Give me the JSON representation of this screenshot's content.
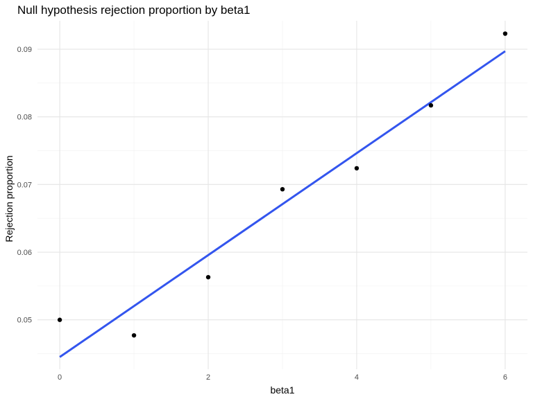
{
  "chart_data": {
    "type": "scatter",
    "title": "Null hypothesis rejection proportion by beta1",
    "xlabel": "beta1",
    "ylabel": "Rejection proportion",
    "xlim": [
      -0.3,
      6.3
    ],
    "ylim": [
      0.0427,
      0.0942
    ],
    "x_ticks": [
      0,
      2,
      4,
      6
    ],
    "x_tick_labels": [
      "0",
      "2",
      "4",
      "6"
    ],
    "y_ticks": [
      0.05,
      0.06,
      0.07,
      0.08,
      0.09
    ],
    "y_tick_labels": [
      "0.05",
      "0.06",
      "0.07",
      "0.08",
      "0.09"
    ],
    "grid": true,
    "points": {
      "x": [
        0,
        1,
        2,
        3,
        4,
        5,
        6
      ],
      "y": [
        0.05,
        0.0477,
        0.0563,
        0.0693,
        0.0724,
        0.0817,
        0.0923
      ]
    },
    "fit_line": {
      "x": [
        0,
        6
      ],
      "y": [
        0.0445,
        0.0897
      ]
    },
    "colors": {
      "points": "#000000",
      "fit_line": "#3355ee",
      "major_grid": "#e5e5e5",
      "minor_grid": "#f0f0f0"
    }
  }
}
